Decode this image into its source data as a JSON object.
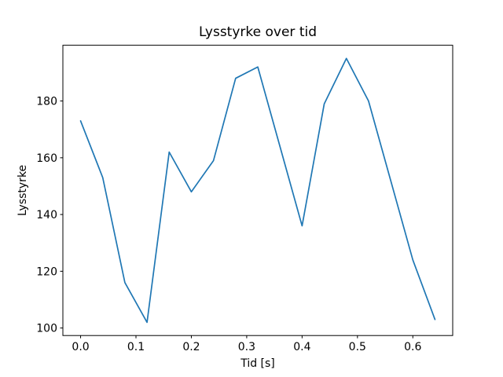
{
  "chart_data": {
    "type": "line",
    "title": "Lysstyrke over tid",
    "xlabel": "Tid [s]",
    "ylabel": "Lysstyrke",
    "x": [
      0.0,
      0.04,
      0.08,
      0.12,
      0.16,
      0.2,
      0.24,
      0.28,
      0.32,
      0.36,
      0.4,
      0.44,
      0.48,
      0.52,
      0.56,
      0.6,
      0.64
    ],
    "y": [
      173,
      153,
      116,
      102,
      162,
      148,
      159,
      188,
      192,
      164,
      136,
      179,
      195,
      180,
      152,
      124,
      103
    ],
    "xlim": [
      -0.032,
      0.672
    ],
    "ylim": [
      97.35,
      199.65
    ],
    "xticks": {
      "values": [
        0.0,
        0.1,
        0.2,
        0.3,
        0.4,
        0.5,
        0.6
      ],
      "labels": [
        "0.0",
        "0.1",
        "0.2",
        "0.3",
        "0.4",
        "0.5",
        "0.6"
      ]
    },
    "yticks": {
      "values": [
        100,
        120,
        140,
        160,
        180
      ],
      "labels": [
        "100",
        "120",
        "140",
        "160",
        "180"
      ]
    },
    "grid": false,
    "legend_position": "none",
    "line_color": "#1f77b4",
    "axis_color": "#000000",
    "background_color": "#ffffff"
  }
}
